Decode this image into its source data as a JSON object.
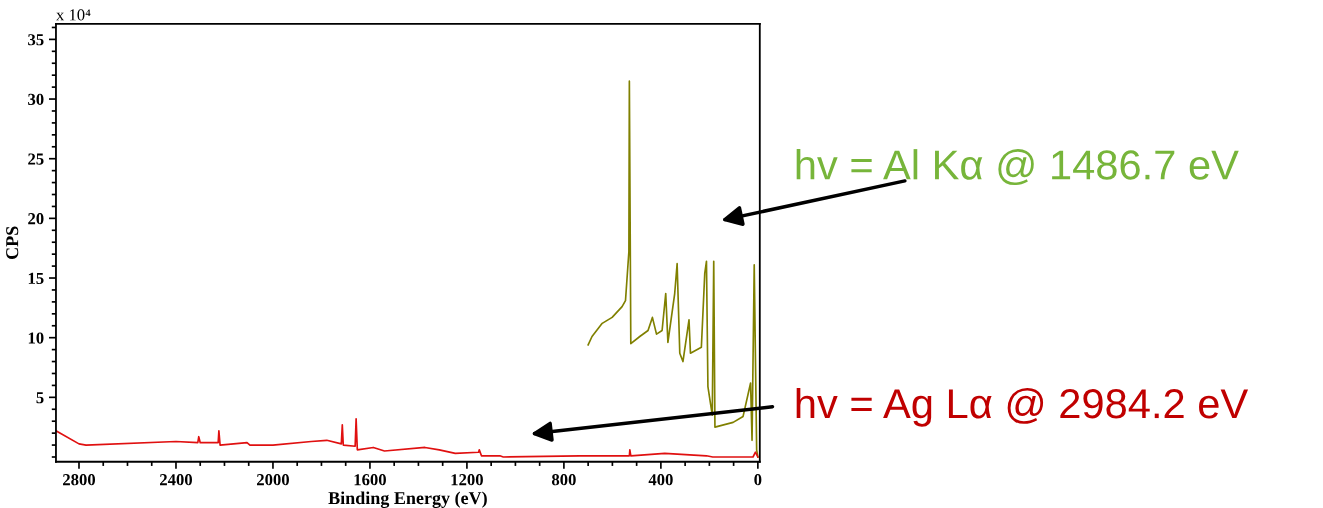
{
  "chart_data": {
    "type": "line",
    "xlabel": "Binding Energy (eV)",
    "ylabel": "CPS",
    "xlim": [
      2895,
      -8
    ],
    "ylim": [
      -0.4,
      36.3
    ],
    "xticks": [
      2800,
      2400,
      2000,
      1600,
      1200,
      800,
      400,
      0
    ],
    "yticks": [
      5,
      10,
      15,
      20,
      25,
      30,
      35
    ],
    "grid": false,
    "marker": "none",
    "line_style": "solid",
    "annotations": [
      "x 10⁴",
      "hv = Al Kα @ 1486.7 eV",
      "hv = Ag Lα @ 2984.2 eV"
    ],
    "series": [
      {
        "color": "#808000",
        "x": [
          700,
          684,
          642,
          601,
          560,
          546,
          532,
          530,
          524,
          487,
          453,
          435,
          418,
          395,
          380,
          371,
          343,
          333,
          322,
          309,
          284,
          278,
          233,
          219,
          212,
          206,
          188,
          182,
          177,
          102,
          61,
          30,
          24,
          15,
          5,
          0
        ],
        "values": [
          9.4,
          10.1,
          11.2,
          11.7,
          12.6,
          13.1,
          17.2,
          31.5,
          9.5,
          10.1,
          10.6,
          11.7,
          10.3,
          10.6,
          13.7,
          9.6,
          13.7,
          16.2,
          8.7,
          8.0,
          11.5,
          8.7,
          9.2,
          15.4,
          16.4,
          5.9,
          3.5,
          16.4,
          2.5,
          2.9,
          3.4,
          6.2,
          1.4,
          16.1,
          0.6,
          0.0
        ]
      },
      {
        "color": "#e01010",
        "x": [
          2895,
          2800,
          2771,
          2400,
          2310,
          2306,
          2300,
          2226,
          2223,
          2218,
          2107,
          2095,
          2000,
          1842,
          1778,
          1718,
          1714,
          1710,
          1661,
          1657,
          1652,
          1586,
          1540,
          1373,
          1314,
          1248,
          1152,
          1149,
          1140,
          1064,
          1050,
          734,
          530,
          528,
          524,
          384,
          212,
          186,
          20,
          10,
          0
        ],
        "values": [
          2.2,
          1.1,
          1.0,
          1.3,
          1.2,
          1.7,
          1.2,
          1.2,
          2.2,
          1.0,
          1.2,
          1.0,
          1.0,
          1.3,
          1.4,
          1.1,
          2.7,
          1.0,
          0.9,
          3.2,
          0.6,
          0.8,
          0.5,
          0.8,
          0.6,
          0.3,
          0.4,
          0.6,
          0.1,
          0.1,
          0.0,
          0.1,
          0.1,
          0.6,
          0.1,
          0.3,
          0.1,
          0.0,
          0.0,
          0.4,
          0.0
        ]
      }
    ]
  }
}
